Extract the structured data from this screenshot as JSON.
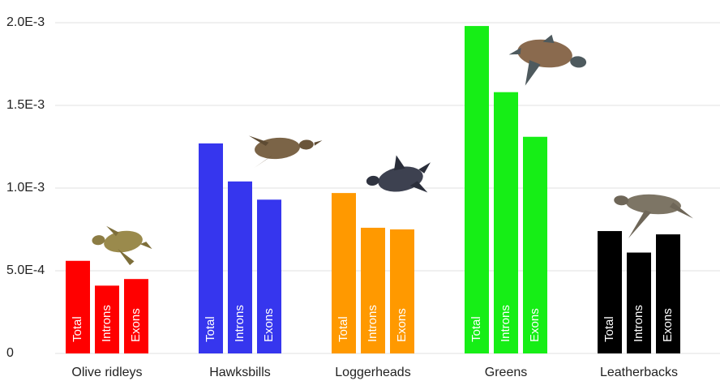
{
  "chart_data": {
    "type": "bar",
    "categories": [
      "Olive ridleys",
      "Hawksbills",
      "Loggerheads",
      "Greens",
      "Leatherbacks"
    ],
    "colors": [
      "#ff0000",
      "#3636ee",
      "#ff9900",
      "#16ee16",
      "#000000"
    ],
    "series": [
      {
        "name": "Total",
        "values": [
          0.00056,
          0.00127,
          0.00097,
          0.00198,
          0.00074
        ]
      },
      {
        "name": "Introns",
        "values": [
          0.00041,
          0.00104,
          0.00076,
          0.00158,
          0.00061
        ]
      },
      {
        "name": "Exons",
        "values": [
          0.00045,
          0.00093,
          0.00075,
          0.00131,
          0.00072
        ]
      }
    ],
    "ylim": [
      0,
      0.002
    ],
    "yticks": [
      0,
      {
        "value": 0.0005,
        "label": "5.0E-4"
      },
      {
        "value": 0.001,
        "label": "1.0E-3"
      },
      {
        "value": 0.0015,
        "label": "1.5E-3"
      },
      {
        "value": 0.002,
        "label": "2.0E-3"
      }
    ],
    "grid": true
  }
}
